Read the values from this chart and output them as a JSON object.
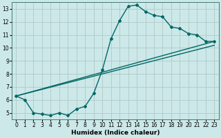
{
  "xlabel": "Humidex (Indice chaleur)",
  "bg_color": "#cce8e8",
  "line_color": "#006666",
  "grid_color": "#b0c8c8",
  "xlim": [
    -0.5,
    23.5
  ],
  "ylim": [
    4.5,
    13.5
  ],
  "xticks": [
    0,
    1,
    2,
    3,
    4,
    5,
    6,
    7,
    8,
    9,
    10,
    11,
    12,
    13,
    14,
    15,
    16,
    17,
    18,
    19,
    20,
    21,
    22,
    23
  ],
  "yticks": [
    5,
    6,
    7,
    8,
    9,
    10,
    11,
    12,
    13
  ],
  "curve1_x": [
    0,
    1,
    2,
    3,
    4,
    5,
    6,
    7,
    8,
    9,
    10,
    11,
    12,
    13,
    14,
    15,
    16,
    17,
    18,
    19,
    20,
    21,
    22,
    23
  ],
  "curve1_y": [
    6.3,
    6.0,
    5.0,
    4.9,
    4.8,
    5.0,
    4.8,
    5.3,
    5.5,
    6.5,
    8.3,
    10.7,
    12.1,
    13.2,
    13.3,
    12.8,
    12.5,
    12.4,
    11.6,
    11.5,
    11.1,
    11.0,
    10.5,
    10.5
  ],
  "line1_x": [
    0,
    23
  ],
  "line1_y": [
    6.3,
    10.5
  ],
  "line2_x": [
    0,
    23
  ],
  "line2_y": [
    6.3,
    10.2
  ],
  "line_width": 1.0,
  "marker": "D",
  "marker_size": 2.0,
  "tick_fontsize": 5.5,
  "xlabel_fontsize": 6.5
}
